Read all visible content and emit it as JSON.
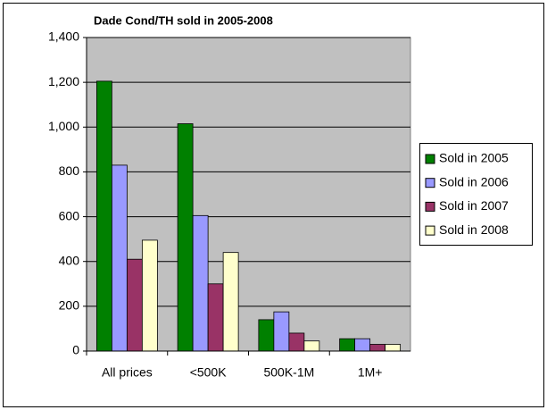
{
  "chart_data": {
    "type": "bar",
    "title": "Dade Cond/TH sold in 2005-2008",
    "categories": [
      "All prices",
      "<500K",
      "500K-1M",
      "1M+"
    ],
    "series": [
      {
        "name": "Sold in 2005",
        "color": "#008000",
        "values": [
          1205,
          1015,
          140,
          55
        ]
      },
      {
        "name": "Sold in 2006",
        "color": "#9999ff",
        "values": [
          830,
          605,
          175,
          55
        ]
      },
      {
        "name": "Sold in 2007",
        "color": "#993366",
        "values": [
          410,
          300,
          80,
          30
        ]
      },
      {
        "name": "Sold in 2008",
        "color": "#ffffcc",
        "values": [
          495,
          440,
          45,
          30
        ]
      }
    ],
    "ylim": [
      0,
      1400
    ],
    "yticks": [
      0,
      200,
      400,
      600,
      800,
      {
        "value": 1000,
        "label": "1,000"
      },
      {
        "value": 1200,
        "label": "1,200"
      },
      {
        "value": 1400,
        "label": "1,400"
      }
    ],
    "grid": true,
    "legend": "right"
  }
}
